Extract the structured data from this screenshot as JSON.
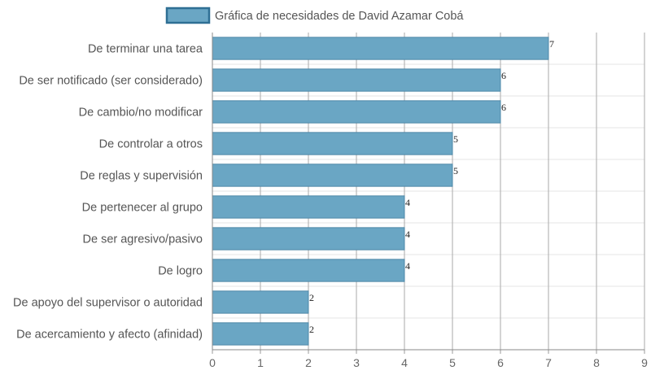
{
  "chart_data": {
    "type": "bar",
    "orientation": "horizontal",
    "categories": [
      "De terminar una tarea",
      "De ser notificado (ser considerado)",
      "De cambio/no modificar",
      "De controlar a otros",
      "De reglas y supervisión",
      "De pertenecer al grupo",
      "De ser agresivo/pasivo",
      "De logro",
      "De apoyo del supervisor o autoridad",
      "De acercamiento y afecto (afinidad)"
    ],
    "series": [
      {
        "name": "Gráfica de necesidades de David Azamar Cobá",
        "values": [
          7,
          6,
          6,
          5,
          5,
          4,
          4,
          4,
          2,
          2
        ]
      }
    ],
    "xlim": [
      0,
      9
    ],
    "x_ticks": [
      "0",
      "1",
      "2",
      "3",
      "4",
      "5",
      "6",
      "7",
      "8",
      "9"
    ],
    "grid": true,
    "legend_position": "top",
    "data_labels": true,
    "colors": {
      "bar_fill": "#6aa6c4",
      "bar_stroke": "#4e88a8",
      "legend_fill": "#6aa6c4",
      "legend_stroke": "#2f6f94",
      "grid_vertical": "#a9a9a9",
      "grid_horizontal": "#e6e6e6"
    }
  }
}
